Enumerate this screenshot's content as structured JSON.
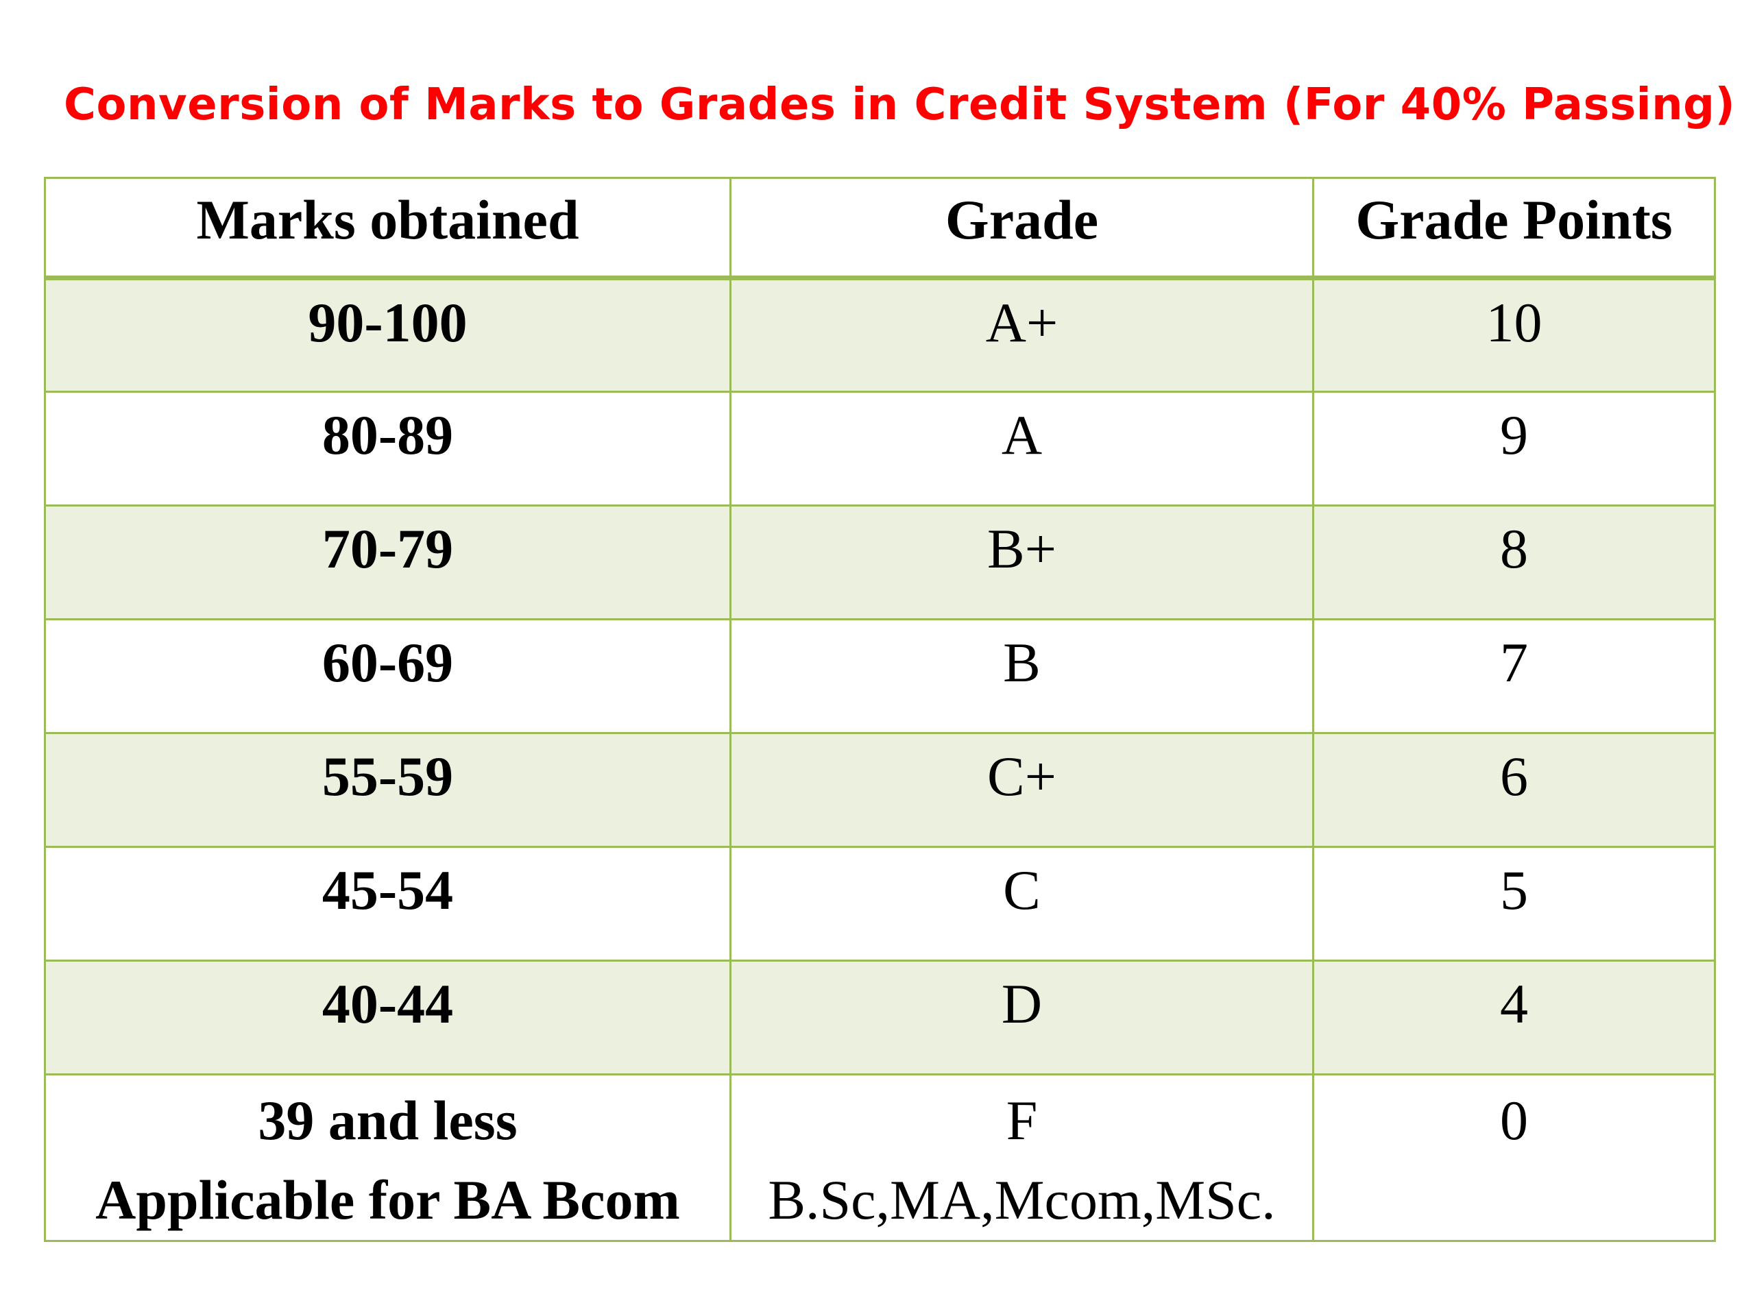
{
  "title": "Conversion of Marks to  Grades in Credit System (For 40% Passing)",
  "table": {
    "headers": [
      "Marks obtained",
      "Grade",
      "Grade Points"
    ],
    "rows": [
      {
        "marks": "90-100",
        "grade": "A+",
        "points": "10"
      },
      {
        "marks": "80-89",
        "grade": "A",
        "points": "9"
      },
      {
        "marks": "70-79",
        "grade": "B+",
        "points": "8"
      },
      {
        "marks": "60-69",
        "grade": "B",
        "points": "7"
      },
      {
        "marks": "55-59",
        "grade": "C+",
        "points": "6"
      },
      {
        "marks": "45-54",
        "grade": "C",
        "points": "5"
      },
      {
        "marks": "40-44",
        "grade": "D",
        "points": "4"
      }
    ],
    "last_row": {
      "marks": "39 and less",
      "marks_note": "Applicable for BA Bcom",
      "grade": "F",
      "grade_note": "B.Sc,MA,Mcom,MSc.",
      "points": "0"
    }
  },
  "colors": {
    "title": "#ff0000",
    "border": "#9bbb59",
    "band": "#ebf1de"
  }
}
